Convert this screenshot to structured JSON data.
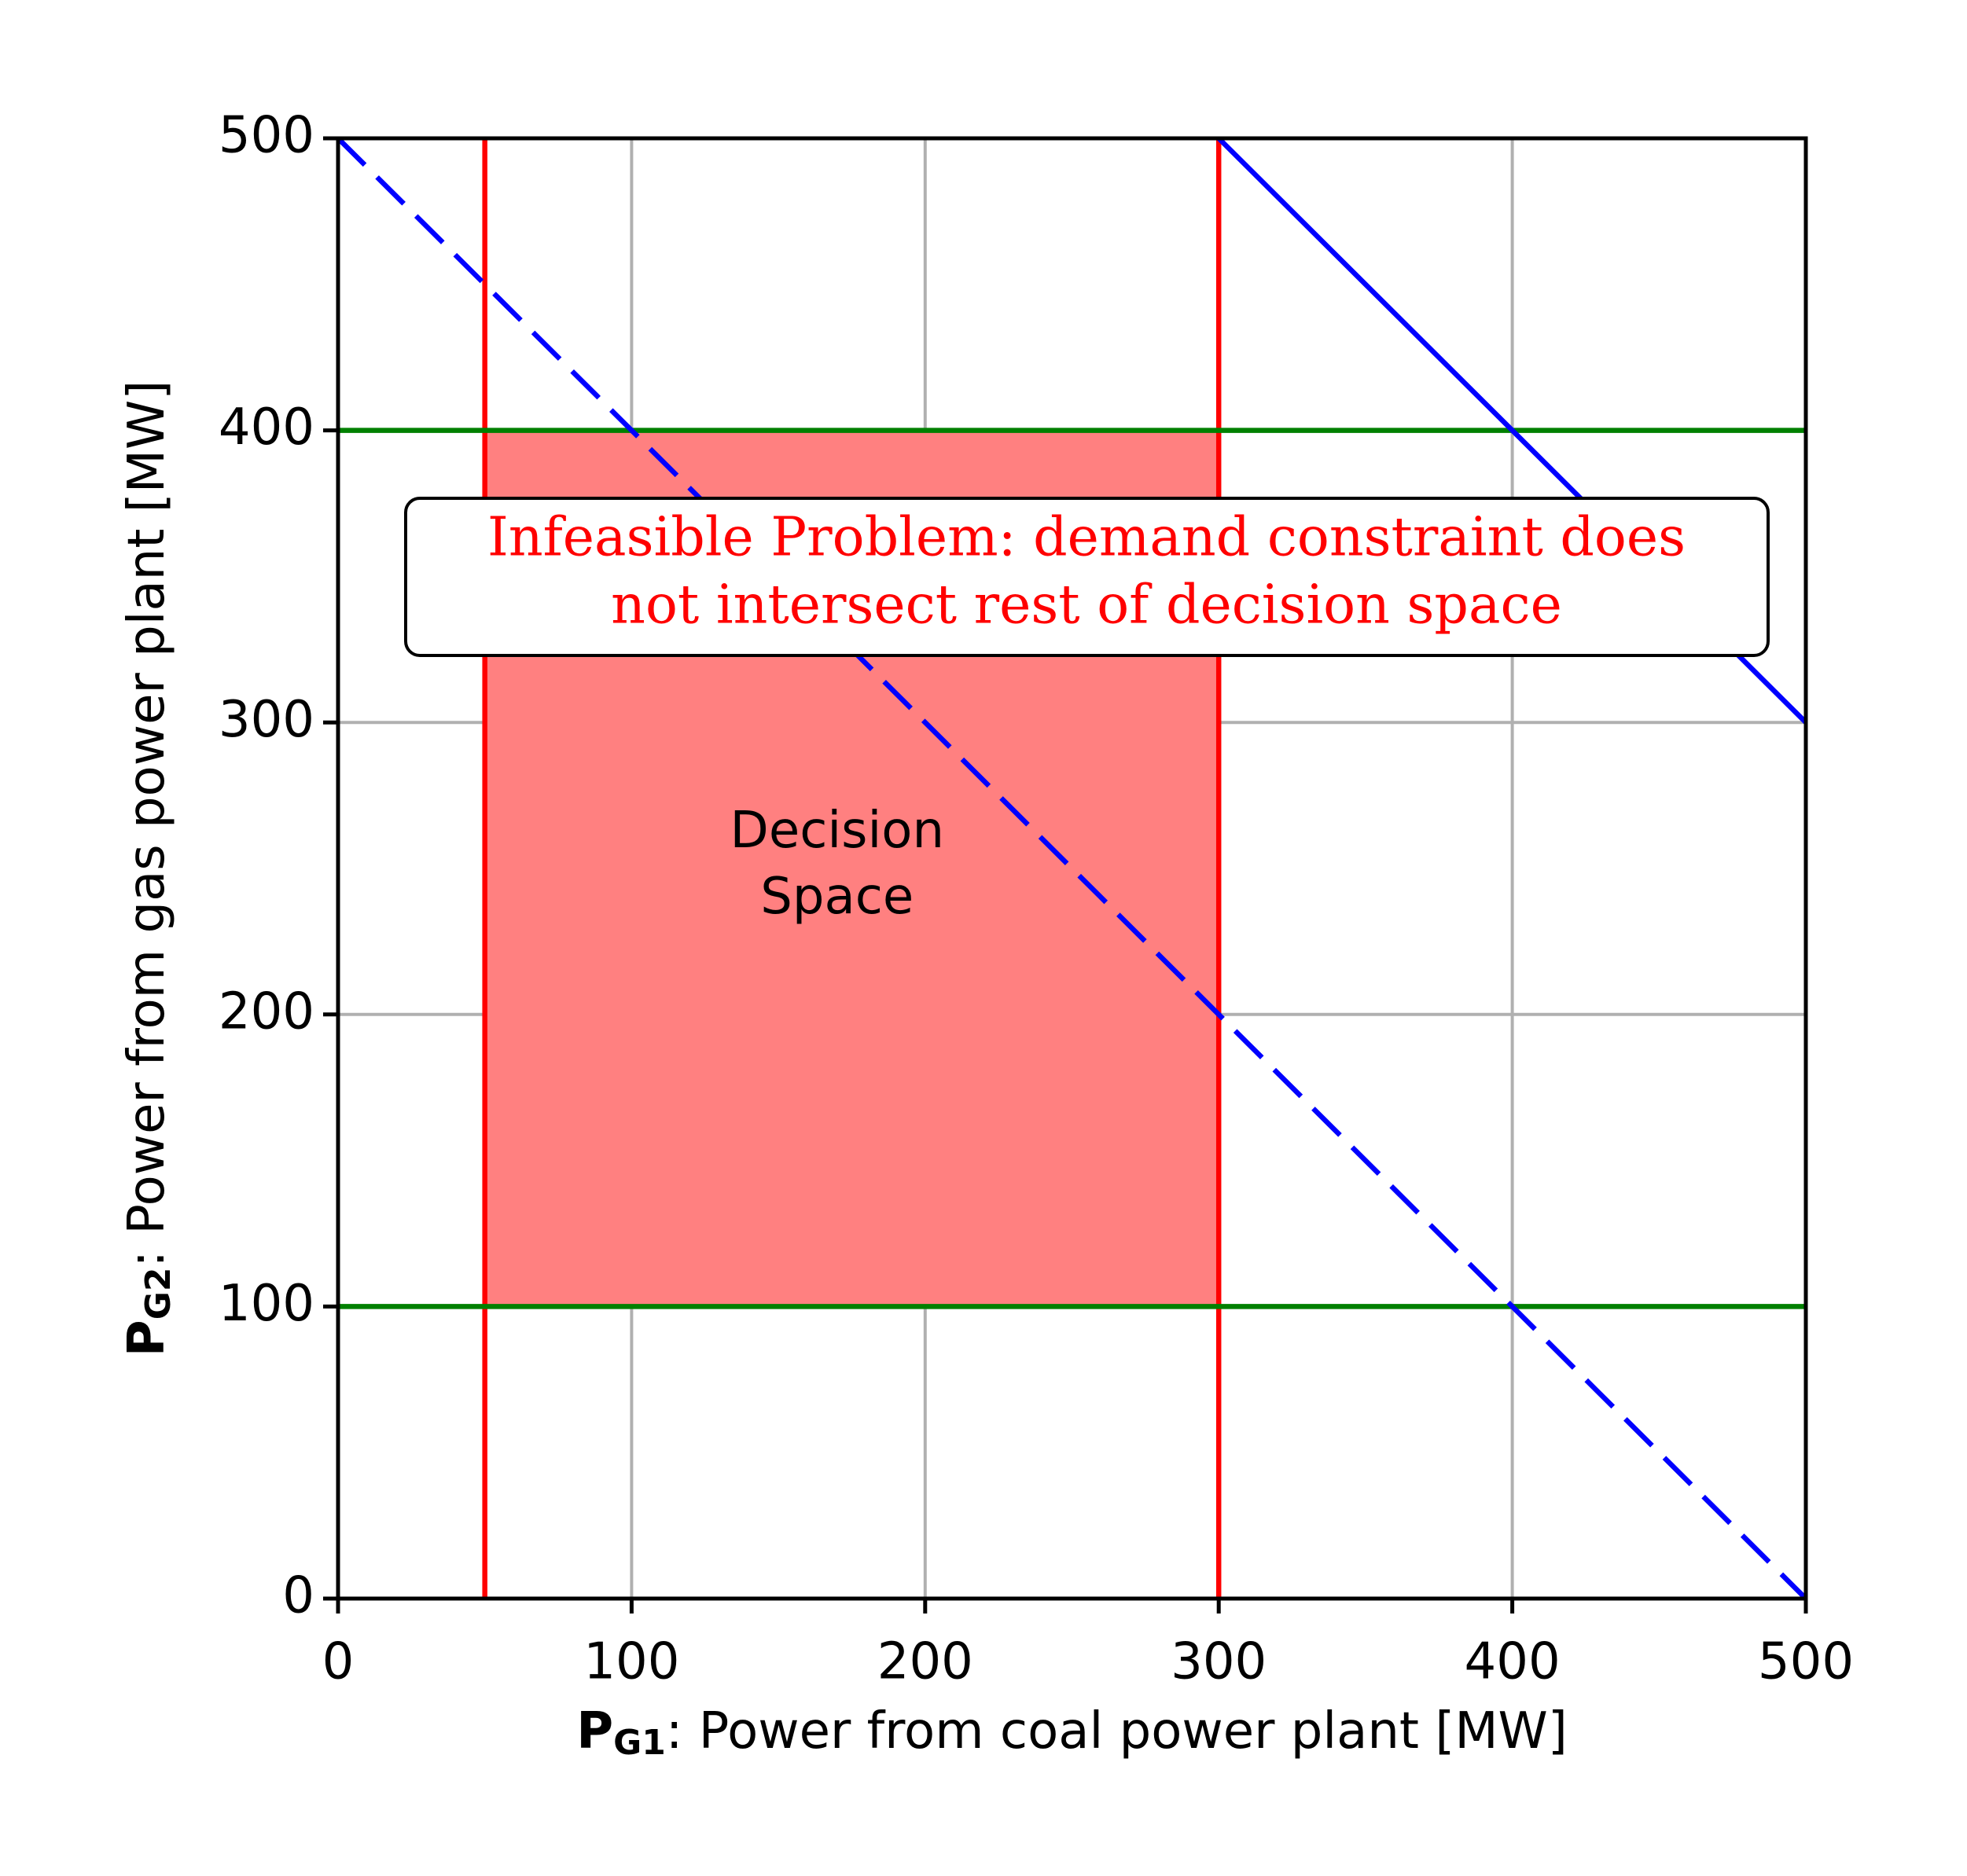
{
  "chart_data": {
    "type": "line",
    "x_label": {
      "symbol": "P",
      "subscript": "G1",
      "text": ": Power from coal power plant [MW]"
    },
    "y_label": {
      "symbol": "P",
      "subscript": "G2",
      "text": ": Power from gas power plant [MW]"
    },
    "xlim": [
      0,
      500
    ],
    "ylim": [
      0,
      500
    ],
    "xticks": [
      0,
      100,
      200,
      300,
      400,
      500
    ],
    "yticks": [
      0,
      100,
      200,
      300,
      400,
      500
    ],
    "grid": true,
    "fill": {
      "x": [
        50,
        300
      ],
      "y": [
        100,
        400
      ],
      "color": "#ff8080"
    },
    "series": [
      {
        "color": "#ff0000",
        "style": "solid",
        "x": [
          50,
          50
        ],
        "values": [
          0,
          500
        ]
      },
      {
        "color": "#ff0000",
        "style": "solid",
        "x": [
          300,
          300
        ],
        "values": [
          0,
          500
        ]
      },
      {
        "color": "#008000",
        "style": "solid",
        "x": [
          0,
          500
        ],
        "values": [
          100,
          100
        ]
      },
      {
        "color": "#008000",
        "style": "solid",
        "x": [
          0,
          500
        ],
        "values": [
          400,
          400
        ]
      },
      {
        "color": "#0000ff",
        "style": "dashed",
        "x": [
          0,
          500
        ],
        "values": [
          500,
          0
        ]
      },
      {
        "color": "#0000ff",
        "style": "solid",
        "x": [
          300,
          500
        ],
        "values": [
          500,
          300
        ]
      }
    ],
    "region_label": [
      "Decision",
      "Space"
    ],
    "note": [
      "Infeasible Problem: demand constraint does",
      "not intersect rest of decision space"
    ],
    "note_color": "#ff0000"
  }
}
